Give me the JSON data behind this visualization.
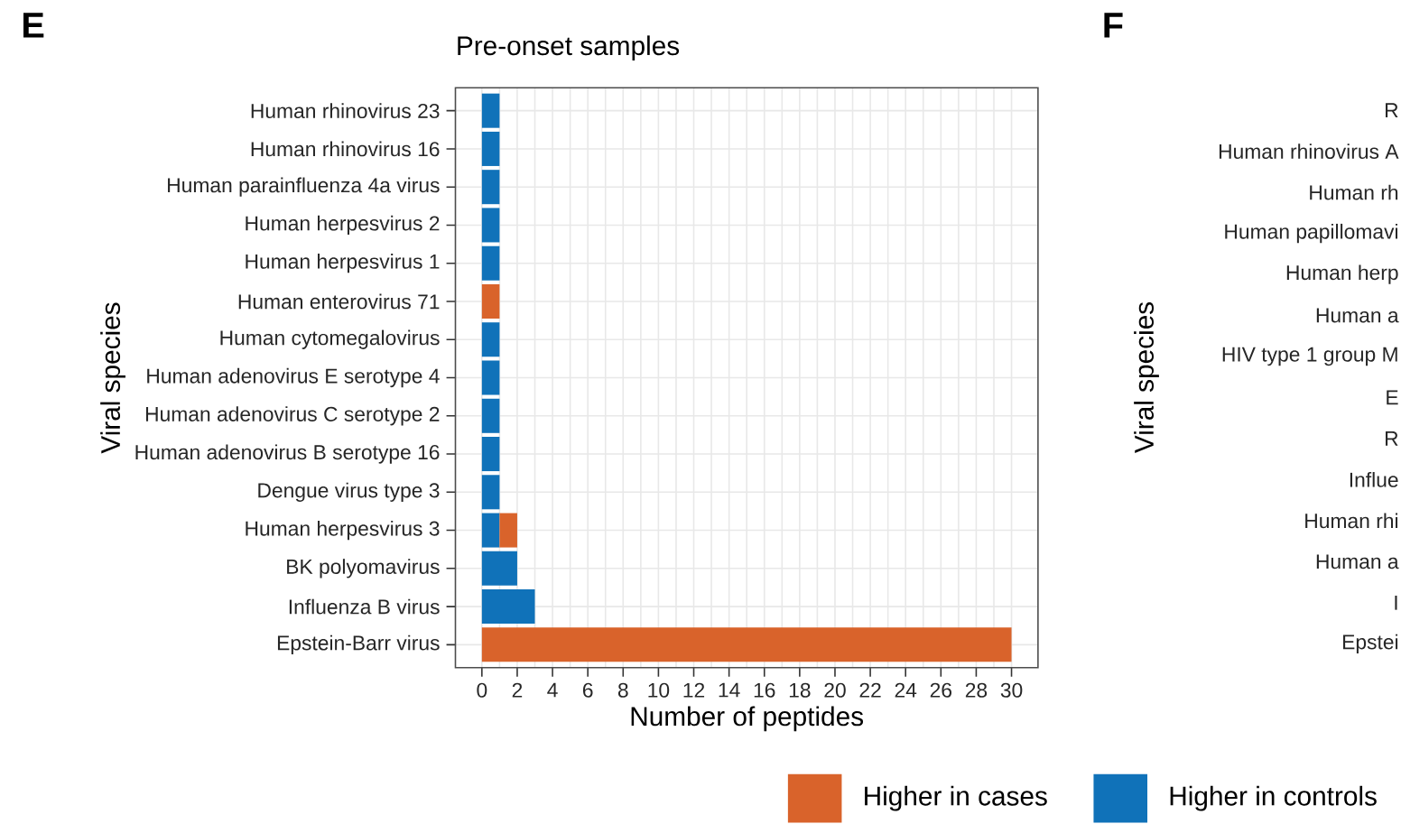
{
  "chart_data": [
    {
      "type": "bar",
      "orientation": "horizontal",
      "stacked": true,
      "title": "Pre-onset samples",
      "xlabel": "Number of peptides",
      "ylabel": "Viral species",
      "annotations": [
        "E"
      ],
      "categories": [
        "Human rhinovirus 23",
        "Human rhinovirus 16",
        "Human parainfluenza 4a virus",
        "Human herpesvirus 2",
        "Human herpesvirus 1",
        "Human enterovirus 71",
        "Human cytomegalovirus",
        "Human adenovirus E serotype 4",
        "Human adenovirus C serotype 2",
        "Human adenovirus B serotype 16",
        "Dengue virus type 3",
        "Human herpesvirus 3",
        "BK polyomavirus",
        "Influenza B virus",
        "Epstein-Barr virus"
      ],
      "series": [
        {
          "name": "Higher in controls",
          "color": "#1072b9",
          "values": [
            1,
            1,
            1,
            1,
            1,
            null,
            1,
            1,
            1,
            1,
            1,
            1,
            2,
            3,
            null
          ]
        },
        {
          "name": "Higher in cases",
          "color": "#d9632b",
          "values": [
            null,
            null,
            null,
            null,
            null,
            1,
            null,
            null,
            null,
            null,
            null,
            1,
            null,
            null,
            30
          ]
        }
      ],
      "xlim": [
        -1.5,
        31.5
      ],
      "xticks": [
        0,
        2,
        4,
        6,
        8,
        10,
        12,
        14,
        16,
        18,
        20,
        22,
        24,
        26,
        28,
        30
      ],
      "grid": true,
      "legend": "bottom"
    },
    {
      "type": "other",
      "ylabel": "Viral species",
      "annotations": [
        "F"
      ],
      "categories": [
        "R",
        "Human rhinovirus A",
        "Human rh",
        "Human papillomavi",
        "Human herp",
        "Human a",
        "HIV type 1 group M",
        "E",
        "R",
        "Influe",
        "Human rhi",
        "Human a",
        "I",
        "Epstei"
      ]
    }
  ]
}
